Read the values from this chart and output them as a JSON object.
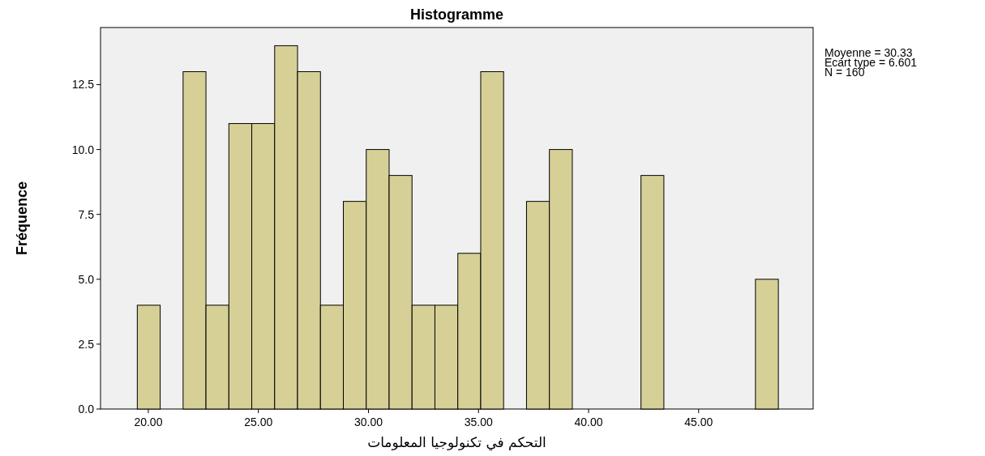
{
  "chart_data": {
    "type": "histogram",
    "title": "Histogramme",
    "xlabel": "التحكم في تكنولوجيا المعلومات",
    "ylabel": "Fréquence",
    "bins": [
      19.5,
      20.54,
      21.58,
      22.62,
      23.66,
      24.7,
      25.74,
      26.78,
      27.82,
      28.86,
      29.9,
      30.94,
      31.98,
      33.02,
      34.06,
      35.1,
      36.14,
      37.18,
      38.22,
      39.26,
      40.3,
      41.34,
      42.38,
      43.42,
      44.46,
      45.5,
      46.54,
      47.58,
      48.62
    ],
    "values": [
      4,
      0,
      13,
      4,
      11,
      11,
      14,
      13,
      4,
      8,
      10,
      9,
      4,
      4,
      6,
      13,
      0,
      8,
      10,
      0,
      0,
      0,
      9,
      0,
      0,
      0,
      0,
      5
    ],
    "color": "#d6d097",
    "xlim": [
      17.83,
      50.2
    ],
    "xticks": [
      {
        "value": 20,
        "label": "20.00"
      },
      {
        "value": 25,
        "label": "25.00"
      },
      {
        "value": 30,
        "label": "30.00"
      },
      {
        "value": 35,
        "label": "35.00"
      },
      {
        "value": 40,
        "label": "40.00"
      },
      {
        "value": 45,
        "label": "45.00"
      }
    ],
    "ylim": [
      0,
      14.7
    ],
    "yticks": [
      {
        "value": 0,
        "label": "0.0"
      },
      {
        "value": 2.5,
        "label": "2.5"
      },
      {
        "value": 5,
        "label": "5.0"
      },
      {
        "value": 7.5,
        "label": "7.5"
      },
      {
        "value": 10,
        "label": "10.0"
      },
      {
        "value": 12.5,
        "label": "12.5"
      }
    ],
    "grid": false,
    "annotations": [
      "Moyenne = 30.33",
      "Ecart type = 6.601",
      "N = 160"
    ]
  }
}
